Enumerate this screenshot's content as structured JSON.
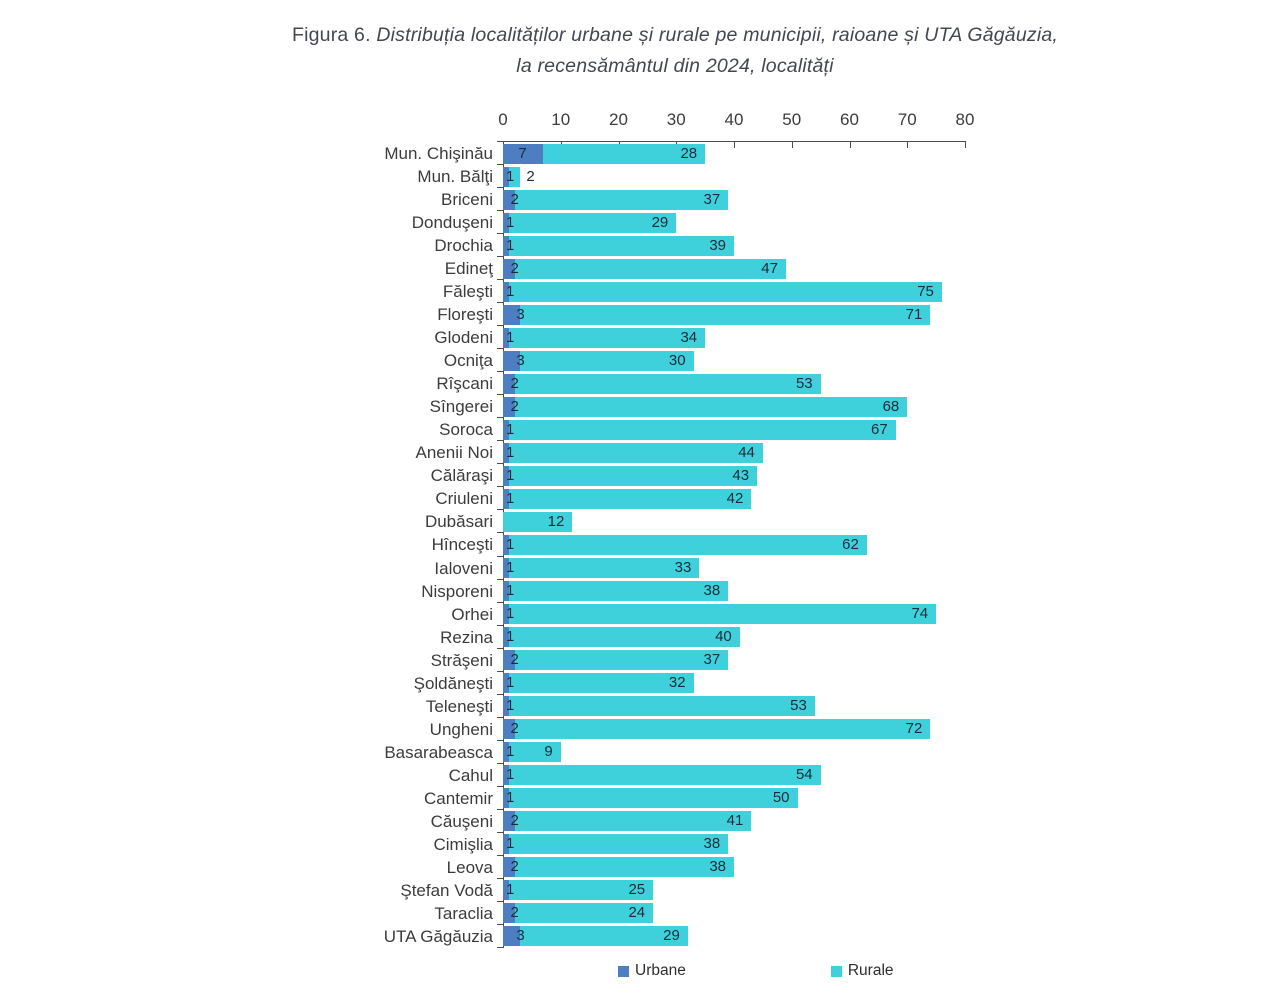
{
  "title": {
    "prefix": "Figura 6.",
    "line1": "Distribuția localităților urbane și rurale pe municipii, raioane și UTA Găgăuzia,",
    "line2": "la recensământul din 2024, localități"
  },
  "chart_data": {
    "type": "bar",
    "orientation": "horizontal",
    "stacked": true,
    "title": "Figura 6. Distribuția localităților urbane și rurale pe municipii, raioane și UTA Găgăuzia, la recensământul din 2024, localități",
    "categories": [
      "Mun. Chişinău",
      "Mun. Bălţi",
      "Briceni",
      "Donduşeni",
      "Drochia",
      "Edineţ",
      "Făleşti",
      "Floreşti",
      "Glodeni",
      "Ocniţa",
      "Rîşcani",
      "Sîngerei",
      "Soroca",
      "Anenii Noi",
      "Călăraşi",
      "Criuleni",
      "Dubăsari",
      "Hînceşti",
      "Ialoveni",
      "Nisporeni",
      "Orhei",
      "Rezina",
      "Străşeni",
      "Şoldăneşti",
      "Teleneşti",
      "Ungheni",
      "Basarabeasca",
      "Cahul",
      "Cantemir",
      "Căuşeni",
      "Cimişlia",
      "Leova",
      "Ştefan Vodă",
      "Taraclia",
      "UTA Găgăuzia"
    ],
    "series": [
      {
        "name": "Urbane",
        "color": "#4d7ec1",
        "values": [
          7,
          1,
          2,
          1,
          1,
          2,
          1,
          3,
          1,
          3,
          2,
          2,
          1,
          1,
          1,
          1,
          0,
          1,
          1,
          1,
          1,
          1,
          2,
          1,
          1,
          2,
          1,
          1,
          1,
          2,
          1,
          2,
          1,
          2,
          3
        ]
      },
      {
        "name": "Rurale",
        "color": "#3fd1db",
        "values": [
          28,
          2,
          37,
          29,
          39,
          47,
          75,
          71,
          34,
          30,
          53,
          68,
          67,
          44,
          43,
          42,
          12,
          62,
          33,
          38,
          74,
          40,
          37,
          32,
          53,
          72,
          9,
          54,
          50,
          41,
          38,
          38,
          25,
          24,
          29
        ]
      }
    ],
    "x_axis": {
      "min": 0,
      "max": 80,
      "ticks": [
        0,
        10,
        20,
        30,
        40,
        50,
        60,
        70,
        80
      ],
      "position": "top"
    },
    "legend": {
      "entries": [
        "Urbane",
        "Rurale"
      ],
      "position": "bottom"
    },
    "data_labels": true,
    "grid": false
  }
}
